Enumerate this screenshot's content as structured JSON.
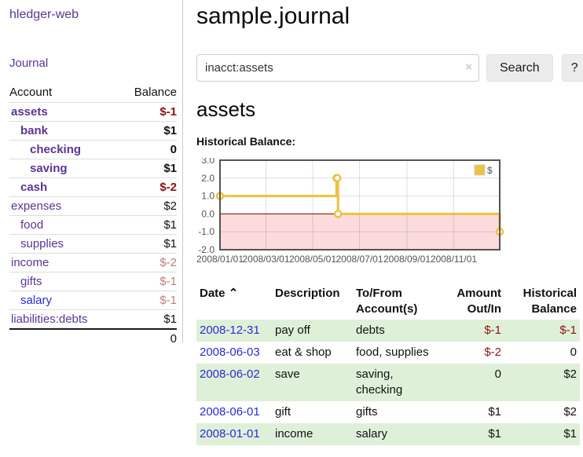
{
  "app": {
    "title": "hledger-web"
  },
  "colors": {
    "link_purple": "#5b3594",
    "link_blue": "#2a2cd6",
    "negative_strong": "#8b1414",
    "negative_soft": "#bd7d7d",
    "row_highlight_green": "#dff0d8",
    "chart_gold": "#edc240"
  },
  "sidebar": {
    "journal_link": "Journal",
    "accounts_table": {
      "headers": {
        "account": "Account",
        "balance": "Balance"
      },
      "rows": [
        {
          "name": "assets",
          "balance": "$-1"
        },
        {
          "name": "bank",
          "balance": "$1"
        },
        {
          "name": "checking",
          "balance": "0"
        },
        {
          "name": "saving",
          "balance": "$1"
        },
        {
          "name": "cash",
          "balance": "$-2"
        },
        {
          "name": "expenses",
          "balance": "$2"
        },
        {
          "name": "food",
          "balance": "$1"
        },
        {
          "name": "supplies",
          "balance": "$1"
        },
        {
          "name": "income",
          "balance": "$-2"
        },
        {
          "name": "gifts",
          "balance": "$-1"
        },
        {
          "name": "salary",
          "balance": "$-1"
        },
        {
          "name": "liabilities:debts",
          "balance": "$1"
        }
      ],
      "total": "0"
    }
  },
  "main": {
    "title": "sample.journal",
    "search": {
      "value": "inacct:assets",
      "clear_icon": "×",
      "button_label": "Search",
      "help_label": "?"
    },
    "account_heading": "assets",
    "chart_heading": "Historical Balance:"
  },
  "chart_data": {
    "type": "line",
    "step": true,
    "series": [
      {
        "name": "$",
        "color": "#edc240",
        "points": [
          {
            "date": "2008-01-01",
            "value": 1
          },
          {
            "date": "2008-06-01",
            "value": 2
          },
          {
            "date": "2008-06-02",
            "value": 2
          },
          {
            "date": "2008-06-03",
            "value": 0
          },
          {
            "date": "2008-12-31",
            "value": -1
          }
        ]
      }
    ],
    "x_range": [
      "2008-01-01",
      "2008-12-31"
    ],
    "ylim": [
      -2,
      3
    ],
    "y_ticks": [
      "3.0",
      "2.0",
      "1.0",
      "0.0",
      "-1.0",
      "-2.0"
    ],
    "x_ticks": [
      "2008/01/01",
      "2008/03/01",
      "2008/05/01",
      "2008/07/01",
      "2008/09/01",
      "2008/11/01"
    ],
    "legend": {
      "label": "$",
      "position": "top-right"
    },
    "grid_on": true,
    "negative_region_color": "#fbdbdb",
    "zero_line_color": "#800000",
    "grid_border_color": "#545454",
    "axis_text_color": "#545454"
  },
  "register": {
    "headers": {
      "date": "Date",
      "sort_icon": "⌃",
      "description": "Description",
      "accounts": "To/From Account(s)",
      "amount": "Amount Out/In",
      "balance": "Historical Balance"
    },
    "rows": [
      {
        "date": "2008-12-31",
        "description": "pay off",
        "accounts": "debts",
        "amount": "$-1",
        "balance": "$-1"
      },
      {
        "date": "2008-06-03",
        "description": "eat & shop",
        "accounts": "food, supplies",
        "amount": "$-2",
        "balance": "0"
      },
      {
        "date": "2008-06-02",
        "description": "save",
        "accounts": "saving, checking",
        "amount": "0",
        "balance": "$2"
      },
      {
        "date": "2008-06-01",
        "description": "gift",
        "accounts": "gifts",
        "amount": "$1",
        "balance": "$2"
      },
      {
        "date": "2008-01-01",
        "description": "income",
        "accounts": "salary",
        "amount": "$1",
        "balance": "$1"
      }
    ]
  }
}
